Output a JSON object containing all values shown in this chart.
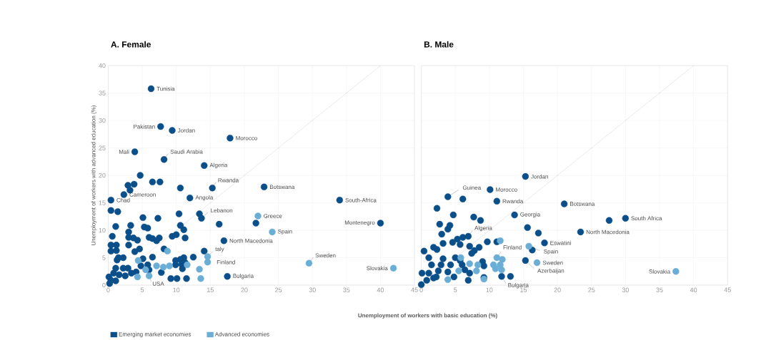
{
  "chart_data": [
    {
      "type": "scatter",
      "title": "A. Female",
      "xlabel": "Unemployment of workers with basic education (%)",
      "ylabel": "Unemployment of workers with advanced education (%)",
      "xlim": [
        0,
        45
      ],
      "ylim": [
        0,
        40
      ],
      "xticks": [
        0,
        5,
        10,
        15,
        20,
        25,
        30,
        35,
        40,
        45
      ],
      "yticks": [
        0,
        5,
        10,
        15,
        20,
        25,
        30,
        35,
        40
      ],
      "grid": true,
      "legend": "bottom",
      "series": [
        {
          "name": "Emerging market economies",
          "marker": "circle",
          "color": "#0b4f8a",
          "x": [
            6.3,
            7.7,
            9.4,
            17.9,
            3.9,
            8.2,
            14.1,
            15.3,
            22.9,
            2.3,
            0.4,
            12.0,
            34.0,
            13.7,
            40.0,
            17.0,
            17.5,
            4.7,
            6.5,
            7.6,
            2.9,
            3.8,
            3.2,
            10.6,
            0.4,
            1.4,
            5.1,
            7.3,
            10.4,
            13.4,
            16.3,
            21.7,
            1.1,
            3.3,
            5.3,
            5.8,
            10.6,
            11.1,
            0.6,
            3.0,
            3.0,
            3.7,
            4.3,
            6.0,
            6.5,
            7.5,
            7.1,
            9.4,
            10.0,
            11.3,
            0.4,
            1.2,
            0.4,
            1.2,
            3.0,
            3.9,
            4.6,
            8.2,
            14.1,
            1.5,
            2.2,
            1.3,
            5.1,
            6.5,
            9.9,
            10.6,
            11.1,
            12.5,
            1.1,
            2.2,
            2.9,
            0.8,
            1.6,
            2.5,
            3.4,
            4.1,
            4.8,
            5.8,
            6.0,
            0.2,
            0.4,
            1.1,
            7.8,
            9.2,
            10.1,
            11.5,
            9.9,
            10.8,
            11.3,
            10.9,
            0.1
          ],
          "values": [
            35.8,
            28.9,
            28.2,
            26.8,
            24.3,
            22.9,
            21.8,
            17.7,
            17.9,
            16.5,
            15.5,
            15.9,
            15.5,
            12.2,
            11.3,
            8.1,
            1.6,
            20.0,
            18.8,
            18.8,
            18.2,
            18.4,
            17.3,
            17.7,
            13.6,
            13.4,
            12.3,
            12.2,
            13.0,
            13.0,
            11.1,
            11.3,
            10.7,
            10.9,
            10.6,
            10.4,
            10.9,
            10.1,
            8.9,
            9.7,
            8.7,
            8.6,
            8.2,
            8.7,
            8.5,
            8.6,
            8.1,
            8.9,
            9.2,
            8.6,
            7.3,
            7.3,
            6.2,
            6.3,
            7.3,
            6.1,
            6.6,
            6.6,
            6.2,
            5.0,
            5.0,
            4.6,
            4.8,
            5.1,
            4.5,
            4.7,
            5.0,
            5.1,
            3.1,
            3.1,
            3.1,
            2.2,
            1.9,
            1.7,
            2.2,
            2.4,
            3.5,
            3.7,
            2.8,
            0.3,
            0.9,
            0.8,
            2.3,
            1.2,
            1.2,
            1.2,
            3.7,
            3.8,
            4.1,
            3.0,
            1.5
          ]
        },
        {
          "name": "Advanced economies",
          "marker": "circle",
          "color": "#6aaed6",
          "x": [
            22.0,
            24.1,
            14.6,
            14.6,
            29.5,
            41.9,
            6.0,
            8.7,
            4.4,
            7.1,
            8.1,
            9.0,
            13.4,
            13.6,
            4.3,
            11.6,
            5.5
          ],
          "values": [
            12.6,
            9.7,
            5.2,
            4.2,
            4.0,
            3.1,
            1.7,
            6.2,
            4.5,
            3.5,
            3.3,
            3.5,
            2.9,
            1.2,
            1.5,
            3.7,
            2.8
          ]
        },
        {
          "type": "line",
          "marker": "none",
          "color": "#c8c8c8",
          "x": [
            0,
            40
          ],
          "values": [
            0,
            40
          ]
        }
      ],
      "annotations": [
        {
          "text": "Tunisia",
          "x": 6.3,
          "y": 35.8
        },
        {
          "text": "Pakistan",
          "x": 7.7,
          "y": 28.9
        },
        {
          "text": "Jordan",
          "x": 9.4,
          "y": 28.2
        },
        {
          "text": "Morocco",
          "x": 17.9,
          "y": 26.8
        },
        {
          "text": "Mali",
          "x": 3.9,
          "y": 24.3
        },
        {
          "text": "Saudi Arabia",
          "x": 8.2,
          "y": 22.9
        },
        {
          "text": "Algeria",
          "x": 14.1,
          "y": 21.8
        },
        {
          "text": "Rwanda",
          "x": 15.3,
          "y": 17.7
        },
        {
          "text": "Botswana",
          "x": 22.9,
          "y": 17.9
        },
        {
          "text": "Cameroon",
          "x": 2.3,
          "y": 16.5
        },
        {
          "text": "Chad",
          "x": 0.4,
          "y": 15.5
        },
        {
          "text": "Angola",
          "x": 12.0,
          "y": 15.9
        },
        {
          "text": "South-Africa",
          "x": 34.0,
          "y": 15.5
        },
        {
          "text": "Lebanon",
          "x": 13.7,
          "y": 12.2
        },
        {
          "text": "Greece",
          "x": 22.0,
          "y": 12.6
        },
        {
          "text": "Montenegro",
          "x": 40.0,
          "y": 11.3
        },
        {
          "text": "Spain",
          "x": 24.1,
          "y": 9.7
        },
        {
          "text": "North Macedonia",
          "x": 17.0,
          "y": 8.1
        },
        {
          "text": "taly",
          "x": 14.6,
          "y": 5.2
        },
        {
          "text": "Finland",
          "x": 14.6,
          "y": 4.2
        },
        {
          "text": "Sweden",
          "x": 29.5,
          "y": 4.0
        },
        {
          "text": "Slovakia",
          "x": 41.9,
          "y": 3.1
        },
        {
          "text": "Bulgaria",
          "x": 17.5,
          "y": 1.6
        },
        {
          "text": "USA",
          "x": 6.0,
          "y": 1.7
        }
      ]
    },
    {
      "type": "scatter",
      "title": "B. Male",
      "xlim": [
        0,
        45
      ],
      "ylim": [
        0,
        40
      ],
      "xticks": [
        0,
        5,
        10,
        15,
        20,
        25,
        30,
        35,
        40,
        45
      ],
      "yticks": [
        0,
        5,
        10,
        15,
        20,
        25,
        30,
        35,
        40
      ],
      "grid": true,
      "tick_labels": "x",
      "series": [
        {
          "marker": "circle",
          "color": "#0b4f8a",
          "x": [
            15.3,
            3.9,
            10.1,
            11.1,
            21.0,
            13.7,
            30.0,
            6.9,
            23.4,
            18.1,
            15.3,
            11.8,
            16.3,
            6.1,
            2.3,
            4.7,
            7.7,
            8.7,
            27.6,
            2.7,
            4.2,
            3.9,
            3.0,
            15.6,
            17.2,
            5.3,
            6.1,
            9.7,
            11.1,
            4.6,
            5.7,
            7.1,
            8.5,
            0.4,
            1.8,
            3.2,
            2.3,
            5.0,
            5.7,
            3.2,
            1.1,
            7.4,
            7.8,
            9.0,
            9.2,
            0.1,
            1.1,
            2.5,
            3.9,
            2.2,
            0.0,
            0.8,
            1.8,
            4.8,
            6.9,
            7.1,
            9.2,
            13.1,
            1.5,
            2.9,
            4.3,
            6.0,
            6.4
          ],
          "values": [
            19.8,
            16.1,
            17.4,
            15.3,
            14.8,
            12.8,
            12.2,
            8.9,
            9.7,
            7.7,
            4.5,
            1.6,
            6.4,
            15.7,
            14.0,
            12.8,
            12.4,
            11.8,
            11.8,
            11.1,
            10.9,
            10.2,
            9.3,
            10.5,
            9.5,
            8.4,
            8.7,
            7.9,
            7.9,
            7.8,
            7.4,
            7.1,
            6.9,
            6.2,
            6.9,
            7.6,
            6.5,
            5.0,
            4.5,
            4.8,
            5.0,
            5.8,
            6.3,
            4.3,
            3.5,
            2.2,
            2.2,
            2.6,
            2.4,
            1.5,
            0.1,
            0.9,
            1.3,
            1.5,
            0.9,
            2.2,
            1.4,
            1.6,
            3.7,
            3.7,
            3.7,
            3.7,
            2.8
          ]
        },
        {
          "marker": "circle",
          "color": "#6aaed6",
          "x": [
            15.8,
            11.1,
            17.0,
            37.4,
            11.6,
            11.9,
            10.6,
            11.6,
            11.8,
            10.9,
            3.9,
            5.5,
            8.3,
            8.1,
            9.2,
            7.1,
            5.8
          ],
          "values": [
            7.1,
            5.0,
            4.1,
            2.5,
            8.1,
            4.7,
            3.7,
            3.7,
            2.8,
            3.0,
            1.0,
            2.6,
            3.7,
            2.6,
            1.1,
            3.9,
            5.0
          ]
        },
        {
          "type": "line",
          "marker": "none",
          "color": "#c8c8c8",
          "x": [
            0,
            40
          ],
          "values": [
            0,
            40
          ]
        }
      ],
      "annotations": [
        {
          "text": "Jordan",
          "x": 15.3,
          "y": 19.8
        },
        {
          "text": "Guinea",
          "x": 3.9,
          "y": 16.1
        },
        {
          "text": "Morocco",
          "x": 10.1,
          "y": 17.4
        },
        {
          "text": "Rwanda",
          "x": 11.1,
          "y": 15.3
        },
        {
          "text": "Botswana",
          "x": 21.0,
          "y": 14.8
        },
        {
          "text": "Georgia",
          "x": 13.7,
          "y": 12.8
        },
        {
          "text": "South Africa",
          "x": 30.0,
          "y": 12.2
        },
        {
          "text": "Algeria",
          "x": 6.9,
          "y": 8.9
        },
        {
          "text": "North Macedonia",
          "x": 23.4,
          "y": 9.7
        },
        {
          "text": "Eswatini",
          "x": 18.1,
          "y": 7.7
        },
        {
          "text": "Spain",
          "x": 15.8,
          "y": 7.1
        },
        {
          "text": "Finland",
          "x": 11.1,
          "y": 5.0
        },
        {
          "text": "Sweden",
          "x": 17.0,
          "y": 4.1
        },
        {
          "text": "Azerbaijan",
          "x": 15.3,
          "y": 4.5
        },
        {
          "text": "Slovakia",
          "x": 37.4,
          "y": 2.5
        },
        {
          "text": "Bulgaria",
          "x": 11.8,
          "y": 1.6
        }
      ]
    }
  ]
}
